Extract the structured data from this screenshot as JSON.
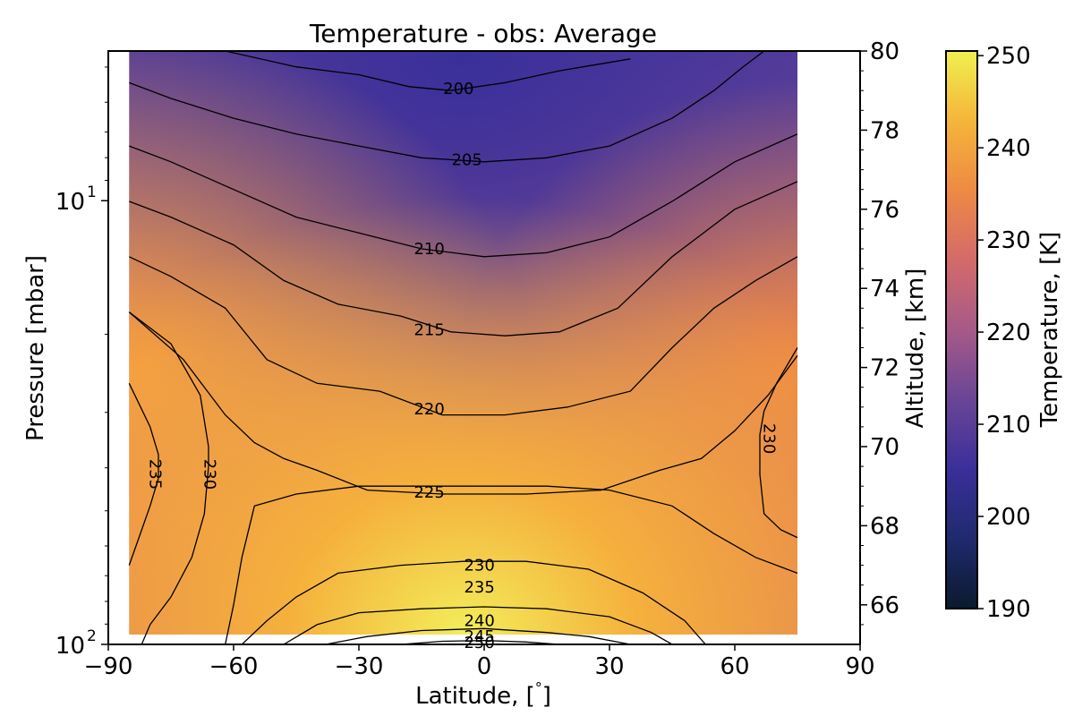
{
  "chart_data": {
    "type": "heatmap",
    "title": "Temperature - obs: Average",
    "xlabel": "Latitude, [$^\\circ$]",
    "xlabel_text": "Latitude, [",
    "xlabel_degree": "°",
    "xlabel_close": "]",
    "ylabel": "Pressure [mbar]",
    "y2label": "Altitude, [km]",
    "colorbar_label": "Temperature, [K]",
    "xlim": [
      -90,
      90
    ],
    "xticks": [
      "−90",
      "−60",
      "−30",
      "0",
      "30",
      "60",
      "90"
    ],
    "xtick_values": [
      -90,
      -60,
      -30,
      0,
      30,
      60,
      90
    ],
    "ylim_pressure": [
      100,
      4.6
    ],
    "y_scale": "log",
    "yticks": [
      {
        "base": "10",
        "exp": "1",
        "value": 10
      },
      {
        "base": "10",
        "exp": "2",
        "value": 100
      }
    ],
    "altitude_ticks": [
      "66",
      "68",
      "70",
      "72",
      "74",
      "76",
      "78",
      "80"
    ],
    "altitude_values": [
      66,
      68,
      70,
      72,
      74,
      76,
      78,
      80
    ],
    "altitude_range": [
      65.0,
      80.0
    ],
    "colorbar_ticks": [
      "190",
      "200",
      "210",
      "220",
      "230",
      "240",
      "250"
    ],
    "colorbar_values": [
      190,
      200,
      210,
      220,
      230,
      240,
      250
    ],
    "clim": [
      190,
      250.5
    ],
    "data_lat_range": [
      -85,
      75
    ],
    "colormap": [
      "#0a1a2e",
      "#1f2a6e",
      "#3a2f9a",
      "#6a4596",
      "#a65a88",
      "#d46a6a",
      "#ee8a44",
      "#f5b53a",
      "#f0f050"
    ],
    "contours": [
      {
        "level": "200",
        "points": [
          [
            -62,
            80
          ],
          [
            -45,
            79.6
          ],
          [
            -30,
            79.4
          ],
          [
            -18,
            79.1
          ],
          [
            -8,
            79.0
          ],
          [
            5,
            79.2
          ],
          [
            18,
            79.5
          ],
          [
            35,
            79.8
          ]
        ],
        "label_at": [
          -10,
          79.05
        ]
      },
      {
        "level": "205",
        "points": [
          [
            -85,
            79.2
          ],
          [
            -75,
            78.8
          ],
          [
            -60,
            78.3
          ],
          [
            -45,
            77.9
          ],
          [
            -30,
            77.6
          ],
          [
            -15,
            77.3
          ],
          [
            0,
            77.2
          ],
          [
            15,
            77.3
          ],
          [
            30,
            77.6
          ],
          [
            45,
            78.3
          ],
          [
            55,
            79.0
          ],
          [
            62,
            79.6
          ],
          [
            67,
            80
          ]
        ],
        "label_at": [
          -8,
          77.25
        ]
      },
      {
        "level": "210",
        "points": [
          [
            -85,
            77.6
          ],
          [
            -75,
            77.2
          ],
          [
            -60,
            76.5
          ],
          [
            -45,
            75.8
          ],
          [
            -30,
            75.4
          ],
          [
            -15,
            75.0
          ],
          [
            0,
            74.8
          ],
          [
            15,
            74.9
          ],
          [
            30,
            75.3
          ],
          [
            45,
            76.2
          ],
          [
            60,
            77.2
          ],
          [
            75,
            77.9
          ]
        ],
        "label_at": [
          -17,
          75.0
        ]
      },
      {
        "level": "215",
        "points": [
          [
            -85,
            76.2
          ],
          [
            -75,
            75.8
          ],
          [
            -60,
            75.1
          ],
          [
            -48,
            74.2
          ],
          [
            -35,
            73.6
          ],
          [
            -20,
            73.3
          ],
          [
            -8,
            72.9
          ],
          [
            5,
            72.8
          ],
          [
            18,
            72.9
          ],
          [
            32,
            73.5
          ],
          [
            45,
            74.8
          ],
          [
            60,
            76.0
          ],
          [
            75,
            76.7
          ]
        ],
        "label_at": [
          -17,
          72.95
        ]
      },
      {
        "level": "220",
        "points": [
          [
            -85,
            74.8
          ],
          [
            -75,
            74.3
          ],
          [
            -62,
            73.5
          ],
          [
            -52,
            72.2
          ],
          [
            -40,
            71.6
          ],
          [
            -25,
            71.4
          ],
          [
            -10,
            70.8
          ],
          [
            5,
            70.8
          ],
          [
            20,
            71.0
          ],
          [
            35,
            71.4
          ],
          [
            45,
            72.5
          ],
          [
            55,
            73.5
          ],
          [
            65,
            74.2
          ],
          [
            75,
            74.8
          ]
        ],
        "label_at": [
          -17,
          70.95
        ]
      },
      {
        "level": "225",
        "points": [
          [
            -85,
            73.4
          ],
          [
            -72,
            72.2
          ],
          [
            -62,
            70.8
          ],
          [
            -55,
            70.1
          ],
          [
            -48,
            69.7
          ],
          [
            -40,
            69.4
          ],
          [
            -28,
            68.9
          ],
          [
            -10,
            68.8
          ],
          [
            10,
            68.8
          ],
          [
            28,
            68.9
          ],
          [
            42,
            69.4
          ],
          [
            52,
            69.7
          ],
          [
            60,
            70.4
          ],
          [
            68,
            71.3
          ],
          [
            75,
            72.3
          ]
        ],
        "label_at": [
          -17,
          68.85
        ]
      },
      {
        "level": "230",
        "points": [
          [
            -62,
            65
          ],
          [
            -60,
            66
          ],
          [
            -58,
            67.2
          ],
          [
            -55,
            68.5
          ],
          [
            -45,
            68.8
          ],
          [
            -30,
            69.0
          ],
          [
            -15,
            69.0
          ],
          [
            0,
            69.0
          ],
          [
            15,
            69.0
          ],
          [
            30,
            68.9
          ],
          [
            45,
            68.5
          ],
          [
            55,
            67.8
          ],
          [
            65,
            67.2
          ],
          [
            75,
            66.8
          ]
        ],
        "label_at": [
          -5,
          67.0
        ]
      },
      {
        "level": "235",
        "points": [
          [
            -58,
            65
          ],
          [
            -52,
            65.6
          ],
          [
            -45,
            66.2
          ],
          [
            -35,
            66.8
          ],
          [
            -20,
            67.0
          ],
          [
            -5,
            67.1
          ],
          [
            10,
            67.1
          ],
          [
            25,
            66.9
          ],
          [
            38,
            66.3
          ],
          [
            48,
            65.6
          ],
          [
            53,
            65
          ]
        ],
        "label_at": [
          -5,
          66.45
        ]
      },
      {
        "level": "240",
        "points": [
          [
            -48,
            65
          ],
          [
            -40,
            65.5
          ],
          [
            -30,
            65.8
          ],
          [
            -15,
            65.9
          ],
          [
            0,
            65.95
          ],
          [
            15,
            65.9
          ],
          [
            30,
            65.7
          ],
          [
            40,
            65.3
          ],
          [
            45,
            65
          ]
        ],
        "label_at": [
          -5,
          65.6
        ]
      },
      {
        "level": "245",
        "points": [
          [
            -38,
            65
          ],
          [
            -28,
            65.2
          ],
          [
            -15,
            65.35
          ],
          [
            0,
            65.4
          ],
          [
            15,
            65.3
          ],
          [
            25,
            65.2
          ],
          [
            35,
            65
          ]
        ],
        "label_at": [
          -5,
          65.2
        ]
      },
      {
        "level": "250",
        "points": [
          [
            -20,
            65
          ],
          [
            -10,
            65.08
          ],
          [
            0,
            65.1
          ],
          [
            10,
            65.06
          ],
          [
            18,
            65
          ]
        ],
        "label_at": [
          -5,
          65.05
        ]
      }
    ],
    "side_labels": [
      {
        "level": "235",
        "at": [
          -80,
          69.3
        ],
        "rotate": 90
      },
      {
        "level": "230",
        "at": [
          -67,
          69.3
        ],
        "rotate": 90
      },
      {
        "level": "230",
        "at": [
          67,
          70.2
        ],
        "rotate": 90
      }
    ],
    "side_contours": [
      {
        "level": "235",
        "points": [
          [
            -85,
            71.6
          ],
          [
            -80,
            70.5
          ],
          [
            -78,
            69.8
          ],
          [
            -78,
            69.2
          ],
          [
            -80,
            68.5
          ],
          [
            -83,
            67.6
          ],
          [
            -85,
            67.0
          ]
        ]
      },
      {
        "level": "230",
        "points": [
          [
            -85,
            73.4
          ],
          [
            -75,
            72.6
          ],
          [
            -68,
            71.3
          ],
          [
            -66,
            70.0
          ],
          [
            -66,
            69.5
          ],
          [
            -67,
            68.3
          ],
          [
            -70,
            67.2
          ],
          [
            -75,
            66.2
          ],
          [
            -80,
            65.5
          ],
          [
            -82,
            65
          ]
        ]
      },
      {
        "level": "230",
        "points": [
          [
            75,
            72.5
          ],
          [
            70,
            71.6
          ],
          [
            67,
            70.9
          ],
          [
            66,
            70.3
          ],
          [
            66,
            69.3
          ],
          [
            67,
            68.3
          ],
          [
            71,
            67.9
          ],
          [
            75,
            67.7
          ]
        ]
      }
    ]
  }
}
